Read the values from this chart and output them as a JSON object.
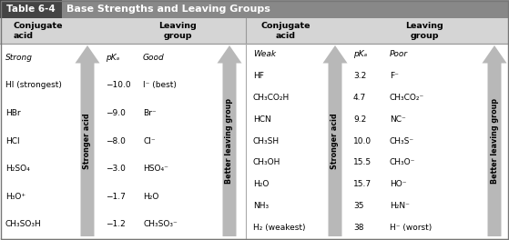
{
  "title": "Table 6-4",
  "title_text": "Base Strengths and Leaving Groups",
  "left_rows": [
    [
      "Strong",
      "pKₐ",
      "Good"
    ],
    [
      "HI (strongest)",
      "−10.0",
      "I⁻ (best)"
    ],
    [
      "HBr",
      "−9.0",
      "Br⁻"
    ],
    [
      "HCl",
      "−8.0",
      "Cl⁻"
    ],
    [
      "H₂SO₄",
      "−3.0",
      "HSO₄⁻"
    ],
    [
      "H₃O⁺",
      "−1.7",
      "H₂O"
    ],
    [
      "CH₃SO₃H",
      "−1.2",
      "CH₃SO₃⁻"
    ]
  ],
  "right_rows": [
    [
      "Weak",
      "pKₐ",
      "Poor"
    ],
    [
      "HF",
      "3.2",
      "F⁻"
    ],
    [
      "CH₃CO₂H",
      "4.7",
      "CH₃CO₂⁻"
    ],
    [
      "HCN",
      "9.2",
      "NC⁻"
    ],
    [
      "CH₃SH",
      "10.0",
      "CH₃S⁻"
    ],
    [
      "CH₃OH",
      "15.5",
      "CH₃O⁻"
    ],
    [
      "H₂O",
      "15.7",
      "HO⁻"
    ],
    [
      "NH₃",
      "35",
      "H₂N⁻"
    ],
    [
      "H₂ (weakest)",
      "38",
      "H⁻ (worst)"
    ]
  ],
  "arrow_label_left": "Stronger acid",
  "arrow_label_mid": "Better leaving group",
  "arrow_label_right": "Stronger acid",
  "arrow_label_right2": "Better leaving group",
  "title_box_color": "#4a4a4a",
  "title_bar_color": "#888888",
  "header_bg": "#d8d8d8",
  "body_bg": "#ffffff",
  "border_color": "#888888",
  "arrow_color": "#b8b8b8",
  "divider_color": "#aaaaaa",
  "title_fontsize": 7.5,
  "header_fontsize": 6.8,
  "body_fontsize": 6.5,
  "arrow_label_fontsize": 5.8
}
